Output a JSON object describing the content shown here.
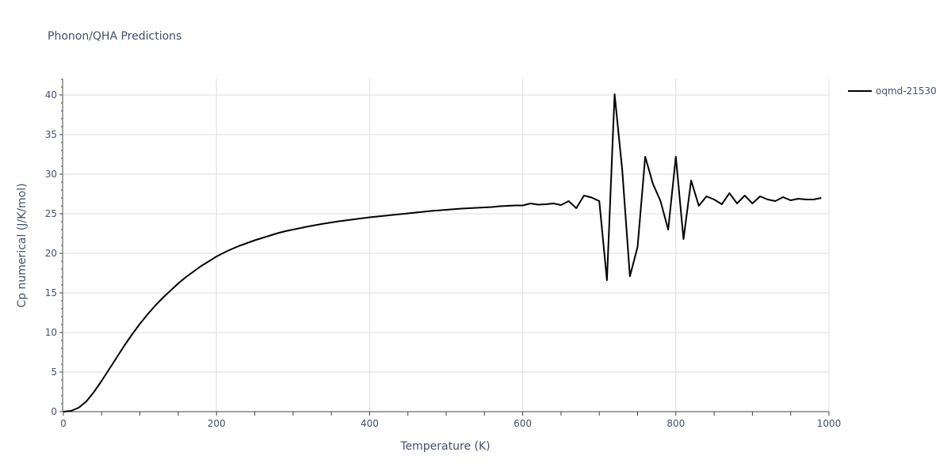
{
  "chart_data": {
    "type": "line",
    "title": "Phonon/QHA Predictions",
    "xlabel": "Temperature (K)",
    "ylabel": "Cp numerical (J/K/mol)",
    "xlim": [
      0,
      1000
    ],
    "ylim": [
      0,
      42
    ],
    "xticks": [
      0,
      200,
      400,
      600,
      800,
      1000
    ],
    "yticks": [
      0,
      5,
      10,
      15,
      20,
      25,
      30,
      35,
      40
    ],
    "grid": true,
    "legend": "top-right",
    "series": [
      {
        "name": "oqmd-21530",
        "color": "#000000",
        "x": [
          0,
          10,
          20,
          30,
          40,
          50,
          60,
          70,
          80,
          90,
          100,
          110,
          120,
          130,
          140,
          150,
          160,
          170,
          180,
          190,
          200,
          210,
          220,
          230,
          240,
          250,
          260,
          270,
          280,
          290,
          300,
          320,
          340,
          360,
          380,
          400,
          420,
          440,
          460,
          480,
          500,
          520,
          540,
          550,
          560,
          570,
          580,
          590,
          600,
          610,
          620,
          630,
          640,
          650,
          660,
          670,
          680,
          690,
          700,
          710,
          720,
          730,
          740,
          750,
          760,
          770,
          780,
          790,
          800,
          810,
          820,
          830,
          840,
          850,
          860,
          870,
          880,
          890,
          900,
          910,
          920,
          930,
          940,
          950,
          960,
          970,
          980,
          990
        ],
        "y": [
          0,
          0.1,
          0.5,
          1.3,
          2.5,
          3.9,
          5.4,
          6.9,
          8.4,
          9.8,
          11.1,
          12.3,
          13.4,
          14.4,
          15.3,
          16.2,
          17.0,
          17.7,
          18.4,
          19.0,
          19.6,
          20.1,
          20.55,
          20.95,
          21.3,
          21.65,
          21.95,
          22.25,
          22.55,
          22.8,
          23.0,
          23.4,
          23.75,
          24.05,
          24.3,
          24.55,
          24.75,
          24.95,
          25.15,
          25.35,
          25.5,
          25.65,
          25.75,
          25.8,
          25.85,
          25.95,
          26.0,
          26.05,
          26.05,
          26.3,
          26.15,
          26.2,
          26.3,
          26.1,
          26.6,
          25.7,
          27.3,
          27.05,
          26.6,
          16.6,
          40.1,
          30.5,
          17.1,
          20.8,
          32.2,
          28.8,
          26.6,
          23.0,
          32.2,
          21.8,
          29.2,
          26.0,
          27.2,
          26.8,
          26.2,
          27.6,
          26.3,
          27.3,
          26.3,
          27.2,
          26.8,
          26.6,
          27.1,
          26.7,
          26.9,
          26.8,
          26.8,
          27.0
        ]
      }
    ]
  }
}
